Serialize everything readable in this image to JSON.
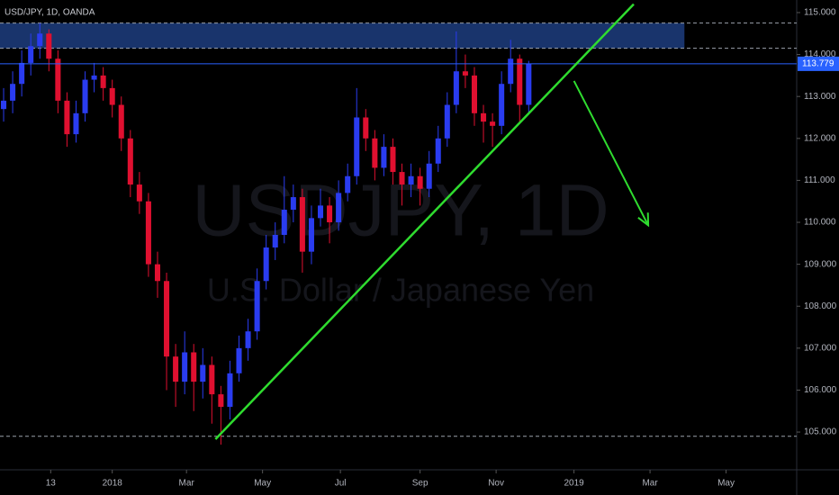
{
  "chart_data": {
    "type": "candlestick",
    "title": "USD/JPY, 1D, OANDA",
    "watermark": "USDJPY, 1D",
    "watermark_subtitle": "U.S. Dollar / Japanese Yen",
    "up_color": "#2a3cf0",
    "down_color": "#e01030",
    "xlim": [
      0,
      440
    ],
    "ylim": [
      104.1,
      115.3
    ],
    "xticks": [
      {
        "value": 28,
        "label": "13"
      },
      {
        "value": 62,
        "label": "2018"
      },
      {
        "value": 103,
        "label": "Mar"
      },
      {
        "value": 145,
        "label": "May"
      },
      {
        "value": 188,
        "label": "Jul"
      },
      {
        "value": 232,
        "label": "Sep"
      },
      {
        "value": 274,
        "label": "Nov"
      },
      {
        "value": 317,
        "label": "2019"
      },
      {
        "value": 359,
        "label": "Mar"
      },
      {
        "value": 401,
        "label": "May"
      }
    ],
    "yticks": [
      {
        "value": 105,
        "label": "105.000"
      },
      {
        "value": 106,
        "label": "106.000"
      },
      {
        "value": 107,
        "label": "107.000"
      },
      {
        "value": 108,
        "label": "108.000"
      },
      {
        "value": 109,
        "label": "109.000"
      },
      {
        "value": 110,
        "label": "110.000"
      },
      {
        "value": 111,
        "label": "111.000"
      },
      {
        "value": 112,
        "label": "112.000"
      },
      {
        "value": 113,
        "label": "113.000"
      },
      {
        "value": 114,
        "label": "114.000"
      },
      {
        "value": 115,
        "label": "115.000"
      }
    ],
    "x": [
      2,
      7,
      12,
      17,
      22,
      27,
      32,
      37,
      42,
      47,
      52,
      57,
      62,
      67,
      72,
      77,
      82,
      87,
      92,
      97,
      102,
      107,
      112,
      117,
      122,
      127,
      132,
      137,
      142,
      147,
      152,
      157,
      162,
      167,
      172,
      177,
      182,
      187,
      192,
      197,
      202,
      207,
      212,
      217,
      222,
      227,
      232,
      237,
      242,
      247,
      252,
      257,
      262,
      267,
      272,
      277,
      282,
      287,
      292
    ],
    "open": [
      112.7,
      112.9,
      113.3,
      113.8,
      114.2,
      114.5,
      113.9,
      112.9,
      112.1,
      112.6,
      113.4,
      113.5,
      113.2,
      112.8,
      112.0,
      110.9,
      110.5,
      109.0,
      108.6,
      106.8,
      106.2,
      106.9,
      106.2,
      106.6,
      105.9,
      105.6,
      106.4,
      107.0,
      107.4,
      108.6,
      109.4,
      109.7,
      110.3,
      110.6,
      109.3,
      110.1,
      110.4,
      110.0,
      110.7,
      111.1,
      112.5,
      112.0,
      111.3,
      111.8,
      111.2,
      110.9,
      111.1,
      110.8,
      111.4,
      112.0,
      112.8,
      113.6,
      113.5,
      112.6,
      112.4,
      112.3,
      113.3,
      113.9,
      112.8
    ],
    "high": [
      113.2,
      113.6,
      114.1,
      114.5,
      114.75,
      114.6,
      114.1,
      113.1,
      112.9,
      113.6,
      113.8,
      113.7,
      113.4,
      113.0,
      112.2,
      111.2,
      110.7,
      109.3,
      108.8,
      107.1,
      107.4,
      107.1,
      107.0,
      106.8,
      106.1,
      106.7,
      107.3,
      107.7,
      108.9,
      109.7,
      110.0,
      111.1,
      110.9,
      110.8,
      110.4,
      110.8,
      110.6,
      111.0,
      111.4,
      113.2,
      112.7,
      112.2,
      112.1,
      112.0,
      111.4,
      111.4,
      111.3,
      111.7,
      112.3,
      113.1,
      114.55,
      114.0,
      113.7,
      112.8,
      112.6,
      113.6,
      114.35,
      114.0,
      113.85
    ],
    "low": [
      112.4,
      112.6,
      113.0,
      113.5,
      113.9,
      113.6,
      112.6,
      111.8,
      111.9,
      112.4,
      113.1,
      112.9,
      112.5,
      111.7,
      110.6,
      110.2,
      108.7,
      108.2,
      106.0,
      105.6,
      105.9,
      105.5,
      105.8,
      105.2,
      104.7,
      105.3,
      106.2,
      106.7,
      107.2,
      108.4,
      109.1,
      109.5,
      110.0,
      108.8,
      109.0,
      109.9,
      109.5,
      109.8,
      110.5,
      110.9,
      111.7,
      111.0,
      111.1,
      110.9,
      110.4,
      110.6,
      110.4,
      110.6,
      111.2,
      111.8,
      112.6,
      113.2,
      112.3,
      111.9,
      111.8,
      112.1,
      113.1,
      112.4,
      112.6
    ],
    "close": [
      112.9,
      113.3,
      113.8,
      114.2,
      114.5,
      113.9,
      112.9,
      112.1,
      112.6,
      113.4,
      113.5,
      113.2,
      112.8,
      112.0,
      110.9,
      110.5,
      109.0,
      108.6,
      106.8,
      106.2,
      106.9,
      106.2,
      106.6,
      105.9,
      105.6,
      106.4,
      107.0,
      107.4,
      108.6,
      109.4,
      109.7,
      110.3,
      110.6,
      109.3,
      110.1,
      110.4,
      110.0,
      110.7,
      111.1,
      112.5,
      112.0,
      111.3,
      111.8,
      111.2,
      110.9,
      111.1,
      110.8,
      111.4,
      112.0,
      112.8,
      113.6,
      113.5,
      112.6,
      112.4,
      112.3,
      113.3,
      113.9,
      112.8,
      113.78
    ],
    "last_price": 113.779,
    "last_price_color": "#2962ff",
    "zones": [
      {
        "x": [
          0,
          378
        ],
        "y": [
          114.15,
          114.75
        ],
        "color": "#1c3a78"
      }
    ],
    "levels": [
      {
        "value": 114.75,
        "color": "#9aa0aa"
      },
      {
        "value": 114.15,
        "color": "#9aa0aa"
      },
      {
        "value": 104.9,
        "color": "#9aa0aa"
      }
    ],
    "lines": [
      {
        "x": [
          119,
          350
        ],
        "y": [
          104.83,
          115.2
        ],
        "color": "#2fdc2f"
      }
    ],
    "arrows": [
      {
        "x": [
          317,
          358
        ],
        "y": [
          113.37,
          109.93
        ],
        "color": "#2fdc2f"
      }
    ]
  }
}
